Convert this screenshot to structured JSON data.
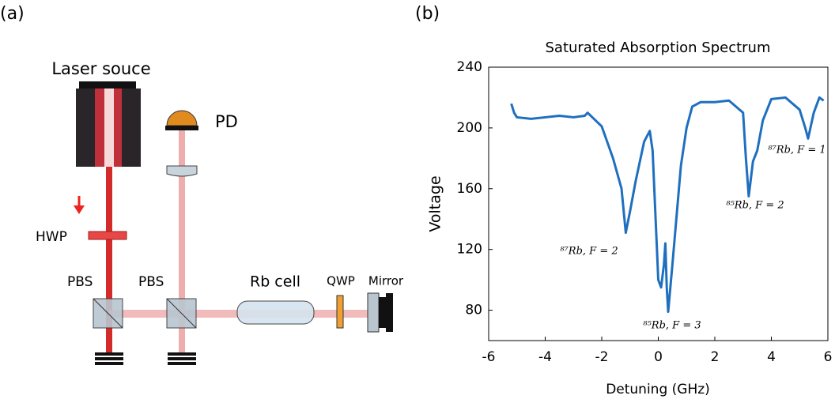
{
  "panel_labels": [
    "(a)",
    "(b)"
  ],
  "diagram": {
    "labels": [
      "Laser souce",
      "PD",
      "HWP",
      "PBS",
      "PBS",
      "Rb cell",
      "QWP",
      "Mirror"
    ]
  },
  "chart_data": {
    "type": "line",
    "title": "Saturated Absorption Spectrum",
    "x_label": "Detuning (GHz)",
    "y_label": "Voltage",
    "x": [
      -5.2,
      -5.1,
      -5.0,
      -4.5,
      -4.0,
      -3.5,
      -3.0,
      -2.6,
      -2.5,
      -2.0,
      -1.6,
      -1.3,
      -1.15,
      -1.0,
      -0.8,
      -0.5,
      -0.3,
      -0.2,
      0.0,
      0.1,
      0.2,
      0.25,
      0.3,
      0.35,
      0.5,
      0.8,
      1.0,
      1.2,
      1.5,
      2.0,
      2.5,
      3.0,
      3.1,
      3.2,
      3.35,
      3.5,
      3.7,
      4.0,
      4.5,
      5.0,
      5.2,
      5.3,
      5.5,
      5.7,
      5.85
    ],
    "series": [
      {
        "name": "Voltage",
        "color": "#1f6fbf",
        "values": [
          216,
          210,
          207,
          206,
          207,
          208,
          207,
          208,
          210,
          201,
          180,
          160,
          131,
          145,
          165,
          191,
          198,
          185,
          100,
          95,
          110,
          124,
          95,
          79,
          110,
          175,
          200,
          214,
          217,
          217,
          218,
          210,
          180,
          155,
          178,
          185,
          205,
          219,
          220,
          212,
          200,
          193,
          210,
          220,
          218
        ]
      }
    ],
    "xlim": [
      -6,
      6
    ],
    "xticks": [
      -6,
      -4,
      -2,
      0,
      2,
      4,
      6
    ],
    "ylim": [
      60,
      240
    ],
    "yticks": [
      80,
      120,
      160,
      200,
      240
    ],
    "annotations": [
      "⁸⁷Rb, F = 2",
      "⁸⁵Rb, F = 3",
      "⁸⁵Rb, F = 2",
      "⁸⁷Rb, F = 1"
    ]
  }
}
